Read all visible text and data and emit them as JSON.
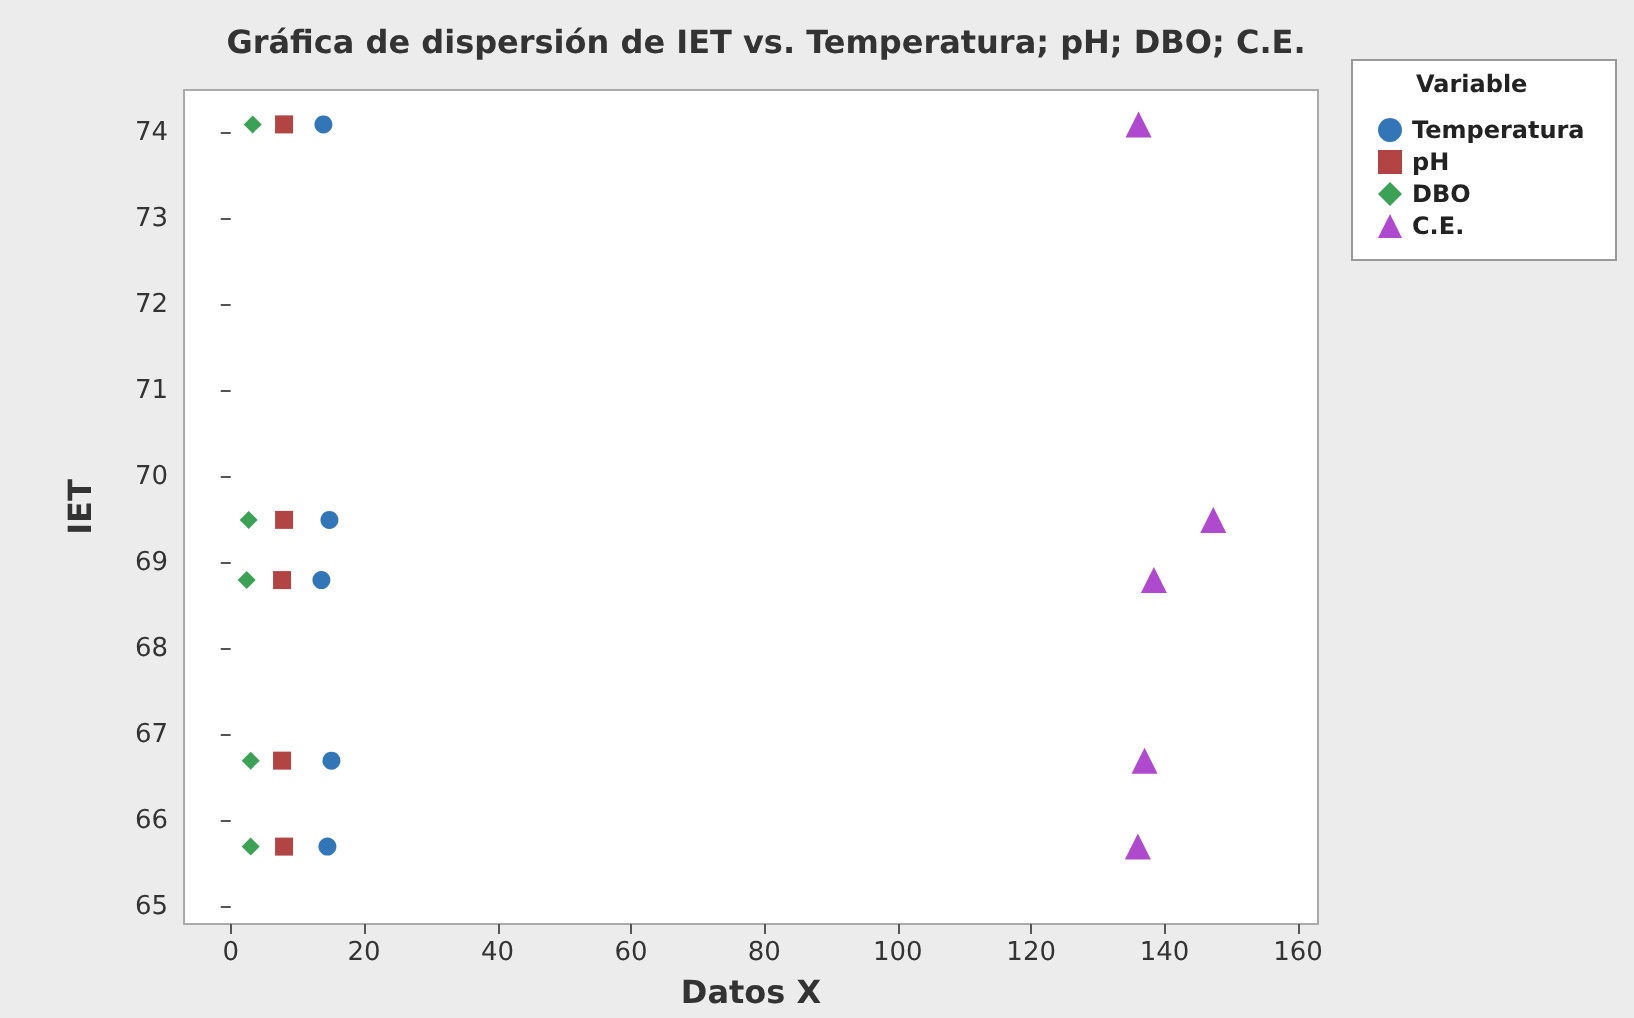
{
  "chart_data": {
    "type": "scatter",
    "title": "Gráfica de dispersión de IET vs. Temperatura; pH; DBO; C.E.",
    "xlabel": "Datos X",
    "ylabel": "IET",
    "legend_title": "Variable",
    "legend": "top right",
    "grid": false,
    "xlim": [
      -7,
      163
    ],
    "xticks": [
      0,
      20,
      40,
      60,
      80,
      100,
      120,
      140,
      160
    ],
    "ylim": [
      64.8,
      74.5
    ],
    "yticks": [
      65,
      66,
      67,
      68,
      69,
      70,
      71,
      72,
      73,
      74
    ],
    "series": [
      {
        "name": "Temperatura",
        "color": "#0054a6",
        "marker": "circle",
        "x": [
          13.9,
          14.8,
          13.6,
          15.1,
          14.5
        ],
        "values": [
          74.1,
          69.5,
          68.8,
          66.7,
          65.7
        ]
      },
      {
        "name": "pH",
        "color": "#a01515",
        "marker": "square",
        "x": [
          8,
          8,
          7.7,
          7.7,
          8
        ],
        "values": [
          74.1,
          69.5,
          68.8,
          66.7,
          65.7
        ]
      },
      {
        "name": "DBO",
        "color": "#0a8a2a",
        "marker": "diamond",
        "x": [
          3.3,
          2.7,
          2.4,
          3,
          3
        ],
        "values": [
          74.1,
          69.5,
          68.8,
          66.7,
          65.7
        ]
      },
      {
        "name": "C.E.",
        "color": "#9b1bc0",
        "marker": "triangle",
        "x": [
          136.1,
          147.3,
          138.4,
          137,
          136
        ],
        "values": [
          74.1,
          69.5,
          68.8,
          66.7,
          65.7
        ]
      }
    ]
  }
}
